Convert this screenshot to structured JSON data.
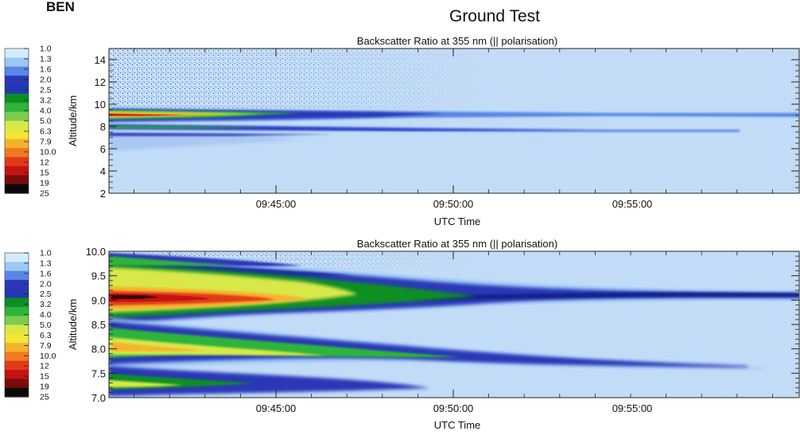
{
  "header": {
    "clipped_text": "BEN",
    "title": "Ground Test"
  },
  "colors": {
    "background": "#c2dcf7",
    "colorbar": [
      "#d4ebff",
      "#9cc8f5",
      "#5a86e6",
      "#2c37b8",
      "#2437b0",
      "#0b8f22",
      "#2fb43a",
      "#7ccc4d",
      "#d8e84a",
      "#f2e637",
      "#f5b32d",
      "#ef7a22",
      "#e23a19",
      "#c31312",
      "#7a0c0c",
      "#0a0a0a"
    ]
  },
  "chart_data": [
    {
      "type": "heatmap",
      "title": "Backscatter Ratio at 355 nm (|| polarisation)",
      "xlabel": "UTC Time",
      "ylabel": "Altitude/km",
      "x_ticks": [
        "09:45:00",
        "09:50:00",
        "09:55:00"
      ],
      "y_ticks": [
        "2",
        "4",
        "6",
        "8",
        "10",
        "12",
        "14"
      ],
      "ylim": [
        2,
        15
      ],
      "colorbar_ticks": [
        "1.0",
        "1.3",
        "1.6",
        "2.0",
        "2.5",
        "3.2",
        "4.0",
        "5.0",
        "6.3",
        "7.9",
        "10.0",
        "12",
        "15",
        "19",
        "25"
      ],
      "layers": [
        {
          "base_km": 9.2,
          "peak_ratio": 12
        },
        {
          "base_km": 7.8,
          "peak_ratio": 3.2
        }
      ]
    },
    {
      "type": "heatmap",
      "title": "Backscatter Ratio at 355 nm (|| polarisation)",
      "xlabel": "UTC Time",
      "ylabel": "Altitude/km",
      "x_ticks": [
        "09:45:00",
        "09:50:00",
        "09:55:00"
      ],
      "y_ticks": [
        "7.0",
        "7.5",
        "8.0",
        "8.5",
        "9.0",
        "9.5",
        "10.0"
      ],
      "ylim": [
        7.0,
        10.0
      ],
      "colorbar_ticks": [
        "1.0",
        "1.3",
        "1.6",
        "2.0",
        "2.5",
        "3.2",
        "4.0",
        "5.0",
        "6.3",
        "7.9",
        "10.0",
        "12",
        "15",
        "19",
        "25"
      ],
      "layers": [
        {
          "base_km": 9.1,
          "peak_ratio": 25
        },
        {
          "base_km": 7.9,
          "peak_ratio": 6.3
        }
      ]
    }
  ]
}
